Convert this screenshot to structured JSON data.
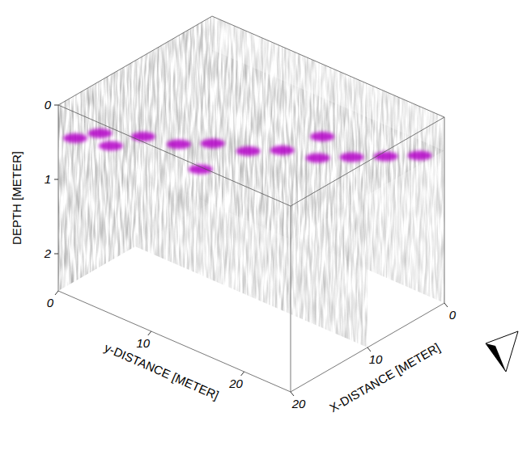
{
  "chart_data": {
    "type": "volume",
    "x_label": "X-DISTANCE [METER]",
    "xlim": [
      0,
      20
    ],
    "xticks": [
      0,
      10,
      20
    ],
    "y_label": "y-DISTANCE [METER]",
    "ylim": [
      0,
      25
    ],
    "yticks": [
      0,
      10,
      20
    ],
    "z_label": "DEPTH [METER]",
    "zlim": [
      0,
      2.5
    ],
    "zticks": [
      0,
      1,
      2
    ],
    "color": "#b400c8",
    "high_amplitude_zones": [
      {
        "x": 19,
        "y": 1,
        "depth": 0.45
      },
      {
        "x": 17,
        "y": 2,
        "depth": 0.45
      },
      {
        "x": 18,
        "y": 4,
        "depth": 0.45
      },
      {
        "x": 15,
        "y": 5,
        "depth": 0.45
      },
      {
        "x": 14,
        "y": 8,
        "depth": 0.45
      },
      {
        "x": 12,
        "y": 10,
        "depth": 0.45
      },
      {
        "x": 11,
        "y": 13,
        "depth": 0.45
      },
      {
        "x": 9,
        "y": 15,
        "depth": 0.45
      },
      {
        "x": 8,
        "y": 18,
        "depth": 0.45
      },
      {
        "x": 6,
        "y": 20,
        "depth": 0.45
      },
      {
        "x": 4,
        "y": 22,
        "depth": 0.45
      },
      {
        "x": 2,
        "y": 24,
        "depth": 0.45
      },
      {
        "x": 16,
        "y": 12,
        "depth": 0.45
      },
      {
        "x": 5,
        "y": 16,
        "depth": 0.45
      }
    ]
  }
}
